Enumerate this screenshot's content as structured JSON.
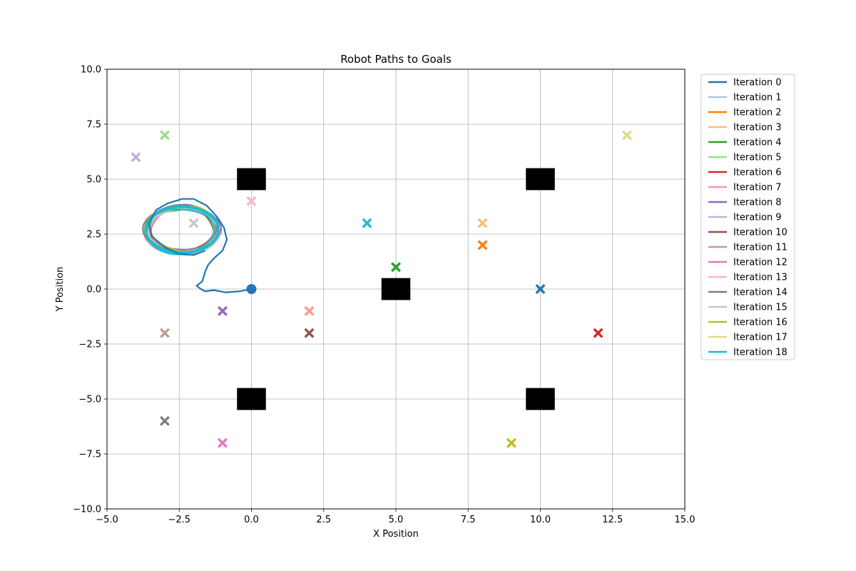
{
  "chart_data": {
    "type": "scatter",
    "title": "Robot Paths to Goals",
    "xlabel": "X Position",
    "ylabel": "Y Position",
    "xlim": [
      -5.0,
      15.0
    ],
    "ylim": [
      -10.0,
      10.0
    ],
    "xticks": [
      "−5.0",
      "−2.5",
      "0.0",
      "2.5",
      "5.0",
      "7.5",
      "10.0",
      "12.5",
      "15.0"
    ],
    "yticks": [
      "−10.0",
      "−7.5",
      "−5.0",
      "−2.5",
      "0.0",
      "2.5",
      "5.0",
      "7.5",
      "10.0"
    ],
    "grid": true,
    "legend_position": "outside-right",
    "start": {
      "x": 0,
      "y": 0
    },
    "obstacles": [
      {
        "x": 0,
        "y": 5,
        "w": 1,
        "h": 1
      },
      {
        "x": 10,
        "y": 5,
        "w": 1,
        "h": 1
      },
      {
        "x": 5,
        "y": 0,
        "w": 1,
        "h": 1
      },
      {
        "x": 0,
        "y": -5,
        "w": 1,
        "h": 1
      },
      {
        "x": 10,
        "y": -5,
        "w": 1,
        "h": 1
      }
    ],
    "series": [
      {
        "name": "Iteration 0",
        "color": "#1f77b4",
        "goal": [
          10,
          0
        ]
      },
      {
        "name": "Iteration 1",
        "color": "#aec7e8",
        "goal": null
      },
      {
        "name": "Iteration 2",
        "color": "#ff7f0e",
        "goal": [
          8,
          2
        ]
      },
      {
        "name": "Iteration 3",
        "color": "#ffbb78",
        "goal": [
          8,
          3
        ]
      },
      {
        "name": "Iteration 4",
        "color": "#2ca02c",
        "goal": [
          5,
          1
        ]
      },
      {
        "name": "Iteration 5",
        "color": "#98df8a",
        "goal": [
          -3,
          7
        ]
      },
      {
        "name": "Iteration 6",
        "color": "#d62728",
        "goal": [
          12,
          -2
        ]
      },
      {
        "name": "Iteration 7",
        "color": "#ff9896",
        "goal": [
          2,
          -1
        ]
      },
      {
        "name": "Iteration 8",
        "color": "#9467bd",
        "goal": [
          -1,
          -1
        ]
      },
      {
        "name": "Iteration 9",
        "color": "#c5b0d5",
        "goal": [
          -4,
          6
        ]
      },
      {
        "name": "Iteration 10",
        "color": "#8c564b",
        "goal": [
          2,
          -2
        ]
      },
      {
        "name": "Iteration 11",
        "color": "#c49c94",
        "goal": [
          -3,
          -2
        ]
      },
      {
        "name": "Iteration 12",
        "color": "#e377c2",
        "goal": [
          -1,
          -7
        ]
      },
      {
        "name": "Iteration 13",
        "color": "#f7b6d2",
        "goal": [
          0,
          4
        ]
      },
      {
        "name": "Iteration 14",
        "color": "#7f7f7f",
        "goal": [
          -3,
          -6
        ]
      },
      {
        "name": "Iteration 15",
        "color": "#c7c7c7",
        "goal": [
          -2,
          3
        ]
      },
      {
        "name": "Iteration 16",
        "color": "#bcbd22",
        "goal": [
          9,
          -7
        ]
      },
      {
        "name": "Iteration 17",
        "color": "#dbdb8d",
        "goal": [
          13,
          7
        ]
      },
      {
        "name": "Iteration 18",
        "color": "#17becf",
        "goal": [
          4,
          3
        ]
      }
    ],
    "path_iteration_0": [
      [
        0,
        0
      ],
      [
        -0.4,
        -0.1
      ],
      [
        -0.9,
        -0.15
      ],
      [
        -1.3,
        -0.05
      ],
      [
        -1.6,
        -0.1
      ],
      [
        -1.75,
        0.0
      ],
      [
        -1.9,
        0.15
      ],
      [
        -1.7,
        0.35
      ],
      [
        -1.6,
        0.8
      ],
      [
        -1.5,
        1.1
      ],
      [
        -1.3,
        1.4
      ],
      [
        -1.0,
        1.75
      ],
      [
        -0.85,
        2.25
      ],
      [
        -0.95,
        2.8
      ],
      [
        -1.2,
        3.3
      ],
      [
        -1.55,
        3.8
      ],
      [
        -2.0,
        4.1
      ],
      [
        -2.4,
        4.1
      ],
      [
        -2.9,
        3.9
      ],
      [
        -3.3,
        3.6
      ],
      [
        -3.55,
        3.0
      ],
      [
        -3.45,
        2.4
      ],
      [
        -3.0,
        1.9
      ],
      [
        -2.5,
        1.6
      ],
      [
        -2.0,
        1.55
      ],
      [
        -1.6,
        1.75
      ]
    ],
    "loop_center": [
      -2.4,
      2.7
    ],
    "loop_radii": [
      1.3,
      1.1
    ]
  }
}
